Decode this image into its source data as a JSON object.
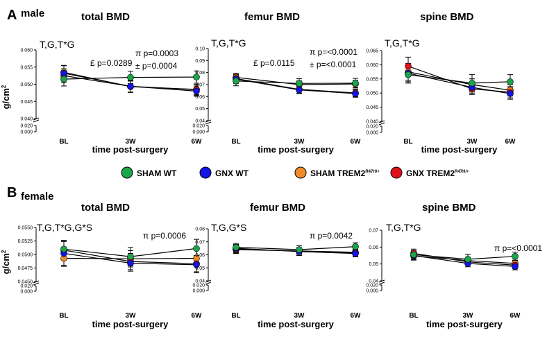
{
  "figure": {
    "legend": {
      "items": [
        {
          "name": "SHAM WT",
          "label_main": "SHAM WT",
          "label_sup": "",
          "color": "#1aa64a"
        },
        {
          "name": "GNX WT",
          "label_main": "GNX WT",
          "label_sup": "",
          "color": "#1414e6"
        },
        {
          "name": "SHAM TREM2R47H/+",
          "label_main": "SHAM TREM2",
          "label_sup": "R47H/+",
          "color": "#f28c28"
        },
        {
          "name": "GNX TREM2R47H/+",
          "label_main": "GNX TREM2",
          "label_sup": "R47H/+",
          "color": "#e0101a"
        }
      ]
    },
    "panels": [
      {
        "letter": "A",
        "sex_label": "male"
      },
      {
        "letter": "B",
        "sex_label": "female"
      }
    ],
    "ylabel": "g/cm",
    "ylabel_sup": "2",
    "xlabel": "time post-surgery"
  },
  "chart_data": [
    {
      "type": "line",
      "title": "total BMD",
      "panel": "A",
      "stats": "T,G,T*G",
      "annotations": [
        "£ p=0.0289",
        "π p=0.0003",
        "± p=0.0004"
      ],
      "categories": [
        "BL",
        "3W",
        "6W"
      ],
      "ylabel": "g/cm2",
      "xlabel": "time post-surgery",
      "ylim_upper": [
        0.04,
        0.06
      ],
      "upper_ticks": [
        0.04,
        0.045,
        0.05,
        0.055,
        0.06
      ],
      "lower_ticks": [
        0.0,
        0.02
      ],
      "tick_decimals": 3,
      "series": [
        {
          "name": "SHAM WT",
          "values": [
            0.0515,
            0.052,
            0.0521
          ],
          "errors": [
            0.002,
            0.0018,
            0.0018
          ]
        },
        {
          "name": "GNX WT",
          "values": [
            0.0532,
            0.0494,
            0.048
          ],
          "errors": [
            0.0022,
            0.0018,
            0.0015
          ]
        },
        {
          "name": "SHAM TREM2R47H/+",
          "values": [
            0.0535,
            0.0493,
            0.0485
          ],
          "errors": [
            0.002,
            0.0016,
            0.0015
          ]
        },
        {
          "name": "GNX TREM2R47H/+",
          "values": [
            0.0525,
            0.0494,
            0.0484
          ],
          "errors": [
            0.002,
            0.0017,
            0.0016
          ]
        }
      ]
    },
    {
      "type": "line",
      "title": "femur BMD",
      "panel": "A",
      "stats": "T,G,T*G",
      "annotations": [
        "£ p=0.0115",
        "π p=<0.0001",
        "± p=<0.0001"
      ],
      "categories": [
        "BL",
        "3W",
        "6W"
      ],
      "ylabel": "g/cm2",
      "xlabel": "time post-surgery",
      "ylim_upper": [
        0.04,
        0.1
      ],
      "upper_ticks": [
        0.04,
        0.05,
        0.06,
        0.07,
        0.08,
        0.09,
        0.1
      ],
      "lower_ticks": [
        0.0,
        0.02
      ],
      "tick_decimals": 2,
      "lower_decimals": 3,
      "series": [
        {
          "name": "SHAM WT",
          "values": [
            0.073,
            0.071,
            0.0712
          ],
          "errors": [
            0.004,
            0.004,
            0.004
          ]
        },
        {
          "name": "GNX WT",
          "values": [
            0.0745,
            0.0656,
            0.0625
          ],
          "errors": [
            0.0035,
            0.003,
            0.003
          ]
        },
        {
          "name": "SHAM TREM2R47H/+",
          "values": [
            0.076,
            0.07,
            0.0705
          ],
          "errors": [
            0.0035,
            0.003,
            0.003
          ]
        },
        {
          "name": "GNX TREM2R47H/+",
          "values": [
            0.075,
            0.066,
            0.063
          ],
          "errors": [
            0.0035,
            0.003,
            0.003
          ]
        }
      ]
    },
    {
      "type": "line",
      "title": "spine BMD",
      "panel": "A",
      "stats": "T,G,T*G",
      "annotations": [],
      "categories": [
        "BL",
        "3W",
        "6W"
      ],
      "ylabel": "g/cm2",
      "xlabel": "time post-surgery",
      "ylim_upper": [
        0.04,
        0.065
      ],
      "upper_ticks": [
        0.04,
        0.045,
        0.05,
        0.055,
        0.06,
        0.065
      ],
      "lower_ticks": [
        0.0,
        0.02
      ],
      "tick_decimals": 3,
      "series": [
        {
          "name": "SHAM WT",
          "values": [
            0.0565,
            0.0535,
            0.054
          ],
          "errors": [
            0.003,
            0.003,
            0.0025
          ]
        },
        {
          "name": "GNX WT",
          "values": [
            0.057,
            0.052,
            0.0498
          ],
          "errors": [
            0.003,
            0.002,
            0.002
          ]
        },
        {
          "name": "SHAM TREM2R47H/+",
          "values": [
            0.0575,
            0.053,
            0.051
          ],
          "errors": [
            0.003,
            0.002,
            0.002
          ]
        },
        {
          "name": "GNX TREM2R47H/+",
          "values": [
            0.0595,
            0.0515,
            0.0503
          ],
          "errors": [
            0.0032,
            0.002,
            0.002
          ]
        }
      ]
    },
    {
      "type": "line",
      "title": "total BMD",
      "panel": "B",
      "stats": "T,G,T*G,G*S",
      "annotations": [
        "π p=0.0006"
      ],
      "categories": [
        "BL",
        "3W",
        "6W"
      ],
      "ylabel": "g/cm2",
      "xlabel": "time post-surgery",
      "ylim_upper": [
        0.045,
        0.055
      ],
      "upper_ticks": [
        0.045,
        0.0475,
        0.05,
        0.0525,
        0.055
      ],
      "lower_ticks": [
        0.0,
        0.02
      ],
      "tick_decimals": 4,
      "lower_decimals": 3,
      "series": [
        {
          "name": "SHAM WT",
          "values": [
            0.051,
            0.0496,
            0.0511
          ],
          "errors": [
            0.0015,
            0.0017,
            0.0017
          ]
        },
        {
          "name": "GNX WT",
          "values": [
            0.0502,
            0.0484,
            0.0481
          ],
          "errors": [
            0.0022,
            0.0015,
            0.0015
          ]
        },
        {
          "name": "SHAM TREM2R47H/+",
          "values": [
            0.0493,
            0.0492,
            0.0493
          ],
          "errors": [
            0.0015,
            0.0015,
            0.0015
          ]
        },
        {
          "name": "GNX TREM2R47H/+",
          "values": [
            0.0508,
            0.0487,
            0.0483
          ],
          "errors": [
            0.0018,
            0.0015,
            0.0015
          ]
        }
      ]
    },
    {
      "type": "line",
      "title": "femur BMD",
      "panel": "B",
      "stats": "T,G,G*S",
      "annotations": [
        "π p=0.0042"
      ],
      "categories": [
        "BL",
        "3W",
        "6W"
      ],
      "ylabel": "g/cm2",
      "xlabel": "time post-surgery",
      "ylim_upper": [
        0.04,
        0.08
      ],
      "upper_ticks": [
        0.04,
        0.05,
        0.06,
        0.07,
        0.08
      ],
      "lower_ticks": [
        0.0,
        0.02
      ],
      "tick_decimals": 2,
      "lower_decimals": 3,
      "series": [
        {
          "name": "SHAM WT",
          "values": [
            0.0658,
            0.064,
            0.0663
          ],
          "errors": [
            0.003,
            0.003,
            0.003
          ]
        },
        {
          "name": "GNX WT",
          "values": [
            0.065,
            0.0625,
            0.061
          ],
          "errors": [
            0.003,
            0.003,
            0.0025
          ]
        },
        {
          "name": "SHAM TREM2R47H/+",
          "values": [
            0.064,
            0.063,
            0.062
          ],
          "errors": [
            0.003,
            0.0025,
            0.0025
          ]
        },
        {
          "name": "GNX TREM2R47H/+",
          "values": [
            0.0645,
            0.0628,
            0.0615
          ],
          "errors": [
            0.003,
            0.0025,
            0.0025
          ]
        }
      ]
    },
    {
      "type": "line",
      "title": "spine BMD",
      "panel": "B",
      "stats": "T,G,T*G",
      "annotations": [
        "π p=<0.0001"
      ],
      "categories": [
        "BL",
        "3W",
        "6W"
      ],
      "ylabel": "g/cm2",
      "xlabel": "time post-surgery",
      "ylim_upper": [
        0.04,
        0.07
      ],
      "upper_ticks": [
        0.04,
        0.05,
        0.06,
        0.07
      ],
      "lower_ticks": [
        0.0,
        0.02
      ],
      "tick_decimals": 2,
      "lower_decimals": 3,
      "series": [
        {
          "name": "SHAM WT",
          "values": [
            0.0555,
            0.0528,
            0.0545
          ],
          "errors": [
            0.0025,
            0.003,
            0.0025
          ]
        },
        {
          "name": "GNX WT",
          "values": [
            0.055,
            0.0503,
            0.0485
          ],
          "errors": [
            0.0025,
            0.002,
            0.002
          ]
        },
        {
          "name": "SHAM TREM2R47H/+",
          "values": [
            0.0548,
            0.052,
            0.0503
          ],
          "errors": [
            0.0025,
            0.002,
            0.002
          ]
        },
        {
          "name": "GNX TREM2R47H/+",
          "values": [
            0.0563,
            0.0512,
            0.0493
          ],
          "errors": [
            0.0025,
            0.002,
            0.002
          ]
        }
      ]
    }
  ]
}
